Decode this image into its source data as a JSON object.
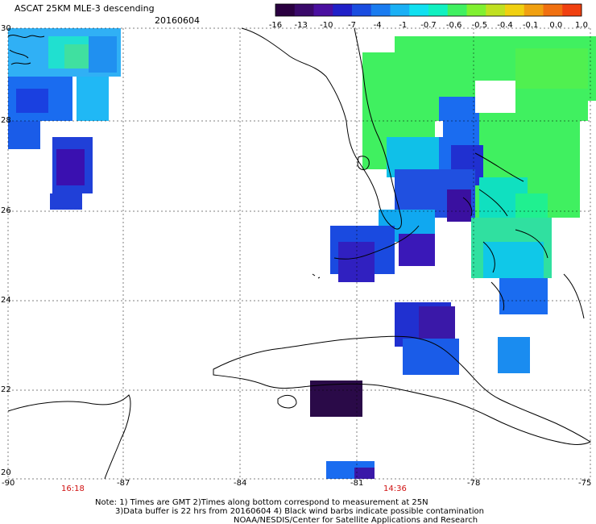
{
  "header": {
    "title": "ASCAT 25KM MLE-3 descending",
    "date": "20160604"
  },
  "colorbar": {
    "labels": [
      "-16",
      "-13",
      "-10",
      "-7",
      "-4",
      "-1",
      "-0.7",
      "-0.6",
      "-0.5",
      "-0.4",
      "-0.1",
      "0.0",
      "1.0"
    ],
    "colors": [
      "#2a0040",
      "#3a0a6a",
      "#4a10a0",
      "#2020c8",
      "#1a4de0",
      "#1a7cf0",
      "#1ab0f5",
      "#10e0f0",
      "#10f0c0",
      "#40f060",
      "#80f030",
      "#c0e020",
      "#f0d010",
      "#f0a010",
      "#f07010",
      "#f04010"
    ]
  },
  "axes": {
    "lat_labels": [
      "30",
      "28",
      "26",
      "24",
      "22",
      "20"
    ],
    "lon_labels": [
      "-90",
      "-87",
      "-84",
      "-81",
      "-78",
      "-75"
    ]
  },
  "times": [
    "16:18",
    "14:36"
  ],
  "notes": [
    "Note: 1) Times are GMT 2)Times along bottom correspond to measurement at 25N",
    "3)Data buffer is 22 hrs from 20160604 4) Black wind barbs indicate possible contamination",
    "NOAA/NESDIS/Center for Satellite Applications and Research"
  ]
}
